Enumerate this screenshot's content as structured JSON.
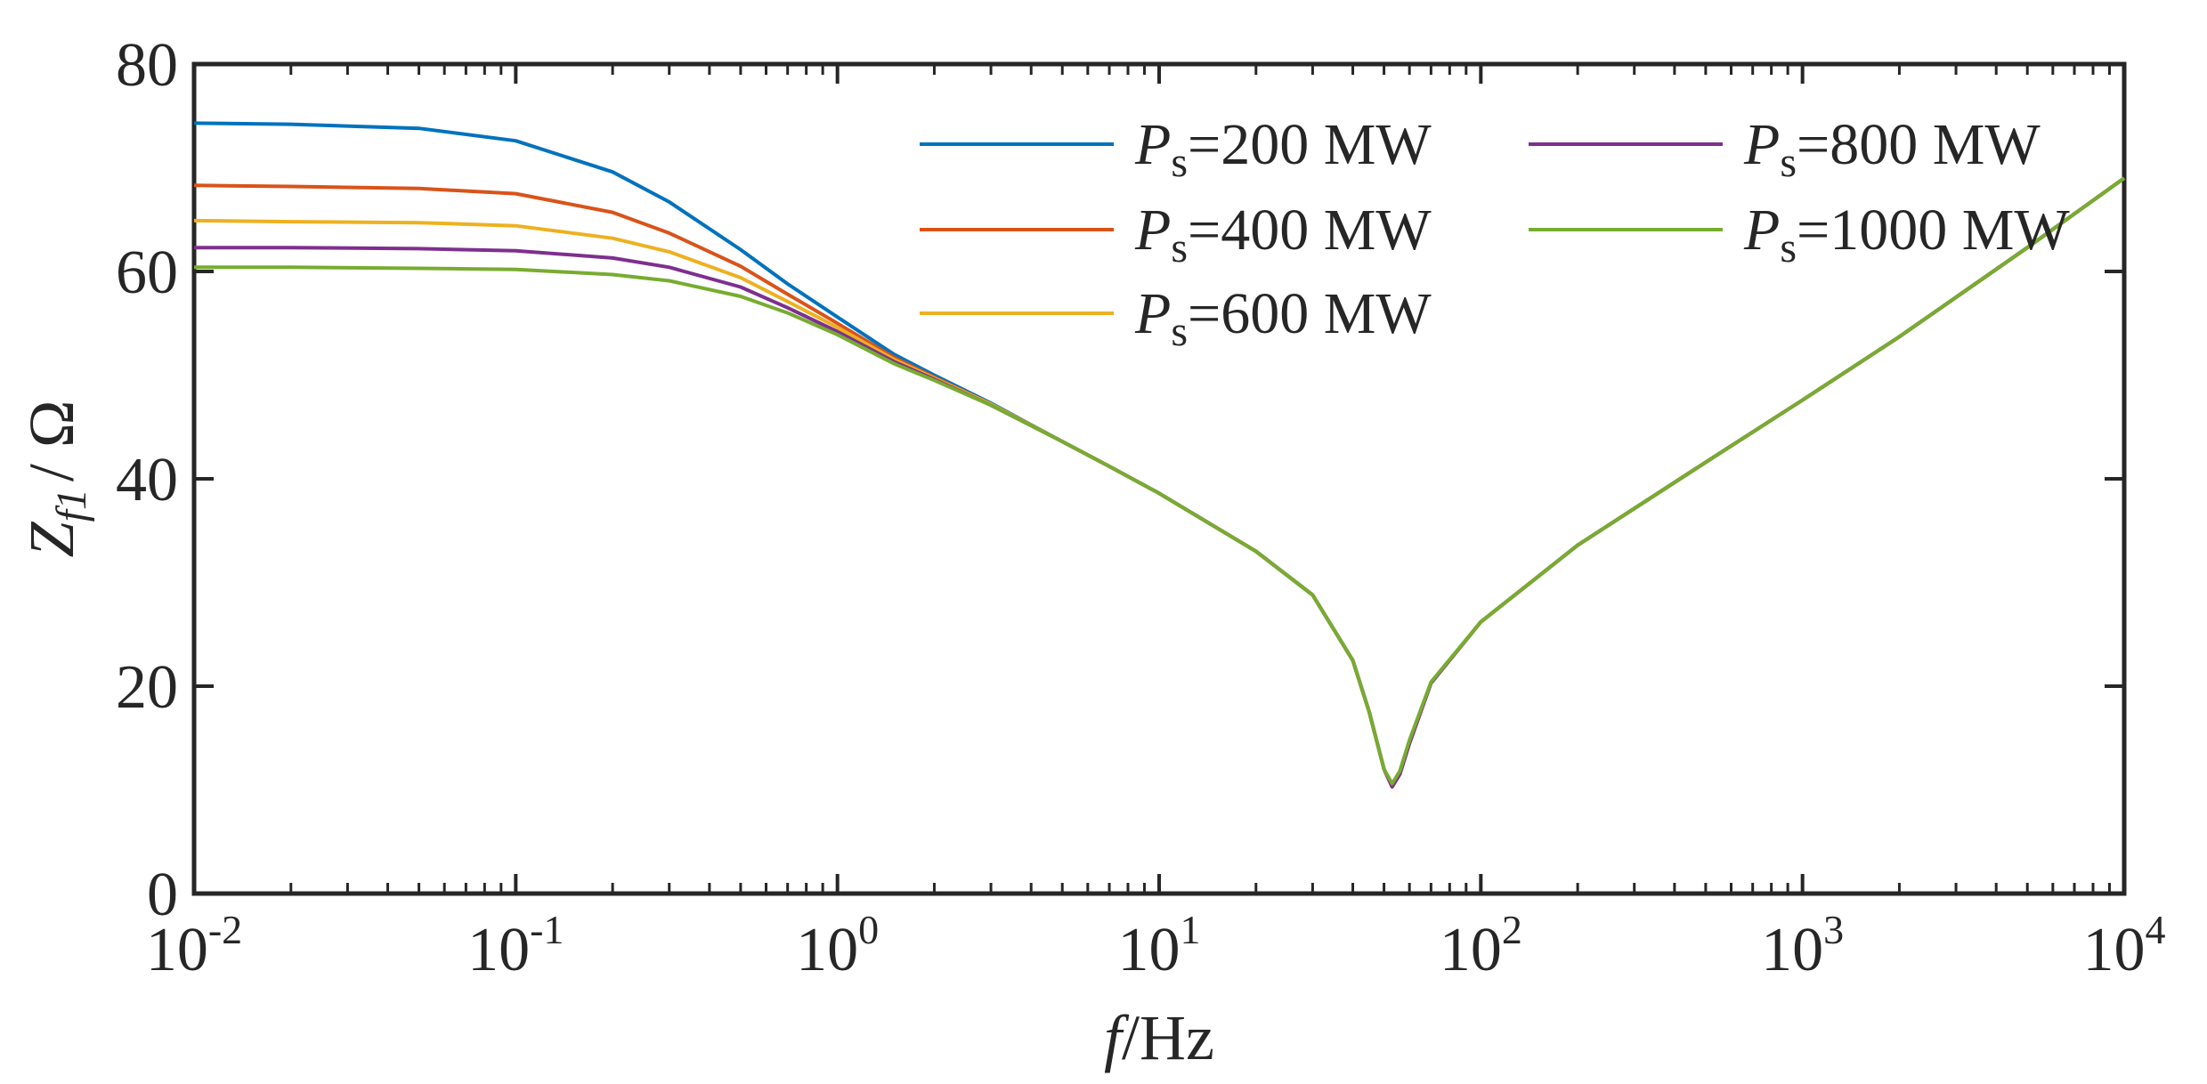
{
  "chart_data": {
    "type": "line",
    "xscale": "log",
    "xlim": [
      0.01,
      10000
    ],
    "ylim": [
      0,
      80
    ],
    "xlabel": {
      "italic": "f",
      "rest": "/Hz"
    },
    "ylabel": {
      "main": "Z",
      "sub": "f1",
      "rest": "/ Ω"
    },
    "xticks": [
      {
        "value": 0.01,
        "base": "10",
        "exp": "-2"
      },
      {
        "value": 0.1,
        "base": "10",
        "exp": "-1"
      },
      {
        "value": 1,
        "base": "10",
        "exp": "0"
      },
      {
        "value": 10,
        "base": "10",
        "exp": "1"
      },
      {
        "value": 100,
        "base": "10",
        "exp": "2"
      },
      {
        "value": 1000,
        "base": "10",
        "exp": "3"
      },
      {
        "value": 10000,
        "base": "10",
        "exp": "4"
      }
    ],
    "yticks": [
      {
        "value": 0,
        "label": "0"
      },
      {
        "value": 20,
        "label": "20"
      },
      {
        "value": 40,
        "label": "40"
      },
      {
        "value": 60,
        "label": "60"
      },
      {
        "value": 80,
        "label": "80"
      }
    ],
    "legend_position": "top-right",
    "series": [
      {
        "name": "Ps=200 MW",
        "symbol": "P",
        "sub": "s",
        "value_text": "=200 MW",
        "color": "#0072BD",
        "points": [
          [
            0.01,
            74.3
          ],
          [
            0.02,
            74.2
          ],
          [
            0.05,
            73.8
          ],
          [
            0.1,
            72.6
          ],
          [
            0.2,
            69.6
          ],
          [
            0.3,
            66.7
          ],
          [
            0.5,
            62.1
          ],
          [
            0.7,
            58.8
          ],
          [
            1,
            55.6
          ],
          [
            1.5,
            52.0
          ],
          [
            2,
            50.0
          ],
          [
            3,
            47.3
          ],
          [
            5,
            43.6
          ],
          [
            7,
            41.2
          ],
          [
            10,
            38.6
          ],
          [
            20,
            33.0
          ],
          [
            30,
            28.8
          ],
          [
            40,
            22.5
          ],
          [
            45,
            17.5
          ],
          [
            50,
            12.0
          ],
          [
            53,
            10.3
          ],
          [
            56,
            11.5
          ],
          [
            60,
            14.5
          ],
          [
            70,
            20.3
          ],
          [
            100,
            26.2
          ],
          [
            200,
            33.6
          ],
          [
            500,
            41.6
          ],
          [
            1000,
            47.6
          ],
          [
            2000,
            53.7
          ],
          [
            5000,
            62.3
          ],
          [
            10000,
            69.0
          ]
        ]
      },
      {
        "name": "Ps=400 MW",
        "symbol": "P",
        "sub": "s",
        "value_text": "=400 MW",
        "color": "#D95319",
        "points": [
          [
            0.01,
            68.3
          ],
          [
            0.02,
            68.2
          ],
          [
            0.05,
            68.0
          ],
          [
            0.1,
            67.5
          ],
          [
            0.2,
            65.7
          ],
          [
            0.3,
            63.7
          ],
          [
            0.5,
            60.5
          ],
          [
            0.7,
            57.8
          ],
          [
            1,
            55.0
          ],
          [
            1.5,
            51.7
          ],
          [
            2,
            49.8
          ],
          [
            3,
            47.2
          ],
          [
            5,
            43.6
          ],
          [
            7,
            41.2
          ],
          [
            10,
            38.6
          ],
          [
            20,
            33.0
          ],
          [
            30,
            28.8
          ],
          [
            40,
            22.5
          ],
          [
            45,
            17.5
          ],
          [
            50,
            12.0
          ],
          [
            53,
            10.3
          ],
          [
            56,
            11.5
          ],
          [
            60,
            14.5
          ],
          [
            70,
            20.3
          ],
          [
            100,
            26.2
          ],
          [
            200,
            33.6
          ],
          [
            500,
            41.6
          ],
          [
            1000,
            47.6
          ],
          [
            2000,
            53.7
          ],
          [
            5000,
            62.3
          ],
          [
            10000,
            69.0
          ]
        ]
      },
      {
        "name": "Ps=600 MW",
        "symbol": "P",
        "sub": "s",
        "value_text": "=600 MW",
        "color": "#EDB120",
        "points": [
          [
            0.01,
            64.9
          ],
          [
            0.02,
            64.8
          ],
          [
            0.05,
            64.7
          ],
          [
            0.1,
            64.4
          ],
          [
            0.2,
            63.2
          ],
          [
            0.3,
            61.9
          ],
          [
            0.5,
            59.4
          ],
          [
            0.7,
            57.1
          ],
          [
            1,
            54.6
          ],
          [
            1.5,
            51.5
          ],
          [
            2,
            49.7
          ],
          [
            3,
            47.2
          ],
          [
            5,
            43.6
          ],
          [
            7,
            41.2
          ],
          [
            10,
            38.6
          ],
          [
            20,
            33.0
          ],
          [
            30,
            28.8
          ],
          [
            40,
            22.5
          ],
          [
            45,
            17.5
          ],
          [
            50,
            12.0
          ],
          [
            53,
            10.3
          ],
          [
            56,
            11.5
          ],
          [
            60,
            14.5
          ],
          [
            70,
            20.3
          ],
          [
            100,
            26.2
          ],
          [
            200,
            33.6
          ],
          [
            500,
            41.6
          ],
          [
            1000,
            47.6
          ],
          [
            2000,
            53.7
          ],
          [
            5000,
            62.3
          ],
          [
            10000,
            69.0
          ]
        ]
      },
      {
        "name": "Ps=800 MW",
        "symbol": "P",
        "sub": "s",
        "value_text": "=800 MW",
        "color": "#7E2F8E",
        "points": [
          [
            0.01,
            62.3
          ],
          [
            0.02,
            62.3
          ],
          [
            0.05,
            62.2
          ],
          [
            0.1,
            62.0
          ],
          [
            0.2,
            61.3
          ],
          [
            0.3,
            60.4
          ],
          [
            0.5,
            58.5
          ],
          [
            0.7,
            56.5
          ],
          [
            1,
            54.2
          ],
          [
            1.5,
            51.3
          ],
          [
            2,
            49.6
          ],
          [
            3,
            47.1
          ],
          [
            5,
            43.6
          ],
          [
            7,
            41.2
          ],
          [
            10,
            38.6
          ],
          [
            20,
            33.0
          ],
          [
            30,
            28.8
          ],
          [
            40,
            22.5
          ],
          [
            45,
            17.5
          ],
          [
            50,
            12.0
          ],
          [
            53,
            10.3
          ],
          [
            56,
            11.5
          ],
          [
            60,
            14.5
          ],
          [
            70,
            20.3
          ],
          [
            100,
            26.2
          ],
          [
            200,
            33.6
          ],
          [
            500,
            41.6
          ],
          [
            1000,
            47.6
          ],
          [
            2000,
            53.7
          ],
          [
            5000,
            62.3
          ],
          [
            10000,
            69.0
          ]
        ]
      },
      {
        "name": "Ps=1000 MW",
        "symbol": "P",
        "sub": "s",
        "value_text": "=1000 MW",
        "color": "#77AC30",
        "points": [
          [
            0.01,
            60.4
          ],
          [
            0.02,
            60.4
          ],
          [
            0.05,
            60.3
          ],
          [
            0.1,
            60.2
          ],
          [
            0.2,
            59.7
          ],
          [
            0.3,
            59.1
          ],
          [
            0.5,
            57.6
          ],
          [
            0.7,
            56.0
          ],
          [
            1,
            53.9
          ],
          [
            1.5,
            51.1
          ],
          [
            2,
            49.5
          ],
          [
            3,
            47.1
          ],
          [
            5,
            43.6
          ],
          [
            7,
            41.2
          ],
          [
            10,
            38.6
          ],
          [
            20,
            33.0
          ],
          [
            30,
            28.8
          ],
          [
            40,
            22.5
          ],
          [
            45,
            17.5
          ],
          [
            50,
            12.0
          ],
          [
            53,
            10.6
          ],
          [
            56,
            11.8
          ],
          [
            60,
            14.8
          ],
          [
            70,
            20.4
          ],
          [
            100,
            26.2
          ],
          [
            200,
            33.6
          ],
          [
            500,
            41.6
          ],
          [
            1000,
            47.6
          ],
          [
            2000,
            53.7
          ],
          [
            5000,
            62.3
          ],
          [
            10000,
            69.0
          ]
        ]
      }
    ]
  }
}
